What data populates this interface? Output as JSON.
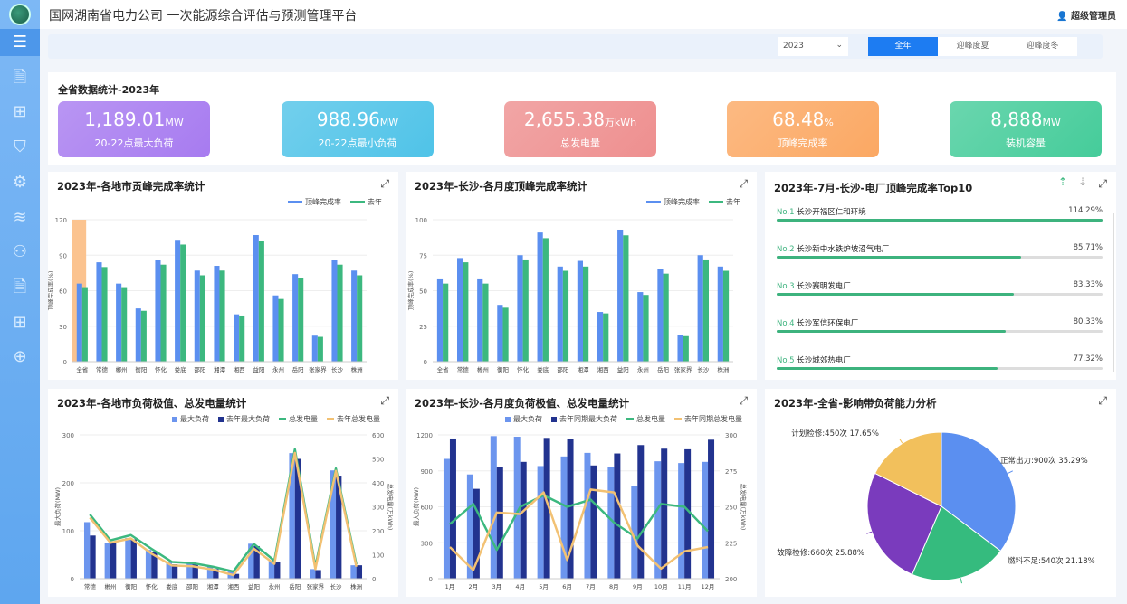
{
  "header": {
    "title": "国网湖南省电力公司 一次能源综合评估与预测管理平台",
    "user": "超级管理员"
  },
  "sidebar": {
    "items": [
      "menu-icon",
      "document-icon",
      "org-chart-icon",
      "shield-icon",
      "gear-icon",
      "layers-icon",
      "network-icon",
      "file-icon",
      "hierarchy-icon",
      "globe-icon"
    ]
  },
  "filter": {
    "year": "2023",
    "tabs": [
      "全年",
      "迎峰度夏",
      "迎峰度冬"
    ],
    "active_tab": 0
  },
  "stats": {
    "title": "全省数据统计-2023年",
    "cards": [
      {
        "value": "1,189.01",
        "unit": "MW",
        "label": "20-22点最大负荷",
        "color": "#a77bf0"
      },
      {
        "value": "988.96",
        "unit": "MW",
        "label": "20-22点最小负荷",
        "color": "#4fc3e8"
      },
      {
        "value": "2,655.38",
        "unit": "万kWh",
        "label": "总发电量",
        "color": "#ee8f8f"
      },
      {
        "value": "68.48",
        "unit": "%",
        "label": "顶峰完成率",
        "color": "#fba863"
      },
      {
        "value": "8,888",
        "unit": "MW",
        "label": "装机容量",
        "color": "#45cc9a"
      }
    ]
  },
  "chart1": {
    "title": "2023年-各地市贡峰完成率统计",
    "legend": [
      "顶峰完成率",
      "去年"
    ]
  },
  "chart2": {
    "title": "2023年-长沙-各月度顶峰完成率统计",
    "legend": [
      "顶峰完成率",
      "去年"
    ]
  },
  "chart3": {
    "title": "2023年-7月-长沙-电厂顶峰完成率Top10",
    "items": [
      {
        "no": "No.1",
        "name": "长沙开福区仁和环境",
        "pct": "114.29%",
        "value": 114.29
      },
      {
        "no": "No.2",
        "name": "长沙新中水铁炉坡沼气电厂",
        "pct": "85.71%",
        "value": 85.71
      },
      {
        "no": "No.3",
        "name": "长沙赛明发电厂",
        "pct": "83.33%",
        "value": 83.33
      },
      {
        "no": "No.4",
        "name": "长沙军信环保电厂",
        "pct": "80.33%",
        "value": 80.33
      },
      {
        "no": "No.5",
        "name": "长沙城郊热电厂",
        "pct": "77.32%",
        "value": 77.32
      }
    ]
  },
  "chart4": {
    "title": "2023年-各地市负荷极值、总发电量统计",
    "legend": [
      "最大负荷",
      "去年最大负荷",
      "总发电量",
      "去年总发电量"
    ]
  },
  "chart5": {
    "title": "2023年-长沙-各月度负荷极值、总发电量统计",
    "legend": [
      "最大负荷",
      "去年同期最大负荷",
      "总发电量",
      "去年同期总发电量"
    ]
  },
  "chart6": {
    "title": "2023年-全省-影响带负荷能力分析"
  },
  "chart_data": [
    {
      "type": "bar",
      "ylabel": "顶峰完成率(%)",
      "ylim": [
        0,
        120
      ],
      "yticks": [
        0,
        30,
        60,
        90,
        120
      ],
      "highlight": "全省",
      "categories": [
        "全省",
        "常德",
        "郴州",
        "衡阳",
        "怀化",
        "娄底",
        "邵阳",
        "湘潭",
        "湘西",
        "益阳",
        "永州",
        "岳阳",
        "张家界",
        "长沙",
        "株洲"
      ],
      "series": [
        {
          "name": "顶峰完成率",
          "color": "#5b8ff0",
          "values": [
            66,
            84,
            66,
            45,
            86,
            103,
            77,
            81,
            40,
            107,
            56,
            74,
            22,
            86,
            77
          ]
        },
        {
          "name": "去年",
          "color": "#3cb87f",
          "values": [
            63,
            80,
            63,
            43,
            82,
            99,
            73,
            77,
            39,
            102,
            53,
            71,
            21,
            82,
            73
          ]
        }
      ]
    },
    {
      "type": "bar",
      "ylabel": "顶峰完成率(%)",
      "ylim": [
        0,
        100
      ],
      "yticks": [
        0,
        25,
        50,
        75,
        100
      ],
      "categories": [
        "全省",
        "常德",
        "郴州",
        "衡阳",
        "怀化",
        "娄底",
        "邵阳",
        "湘潭",
        "湘西",
        "益阳",
        "永州",
        "岳阳",
        "张家界",
        "长沙",
        "株洲"
      ],
      "series": [
        {
          "name": "顶峰完成率",
          "color": "#5b8ff0",
          "values": [
            58,
            73,
            58,
            40,
            75,
            91,
            67,
            71,
            35,
            93,
            49,
            65,
            19,
            75,
            67
          ]
        },
        {
          "name": "去年",
          "color": "#3cb87f",
          "values": [
            55,
            70,
            55,
            38,
            72,
            87,
            64,
            67,
            34,
            89,
            47,
            62,
            18,
            72,
            64
          ]
        }
      ]
    },
    {
      "type": "bar",
      "ylabel": "最大负荷(MW)",
      "y2label": "总发电量(万kWh)",
      "ylim": [
        0,
        300
      ],
      "yticks": [
        0,
        100,
        200,
        300
      ],
      "y2lim": [
        0,
        600
      ],
      "y2ticks": [
        0,
        100,
        200,
        300,
        400,
        500,
        600
      ],
      "categories": [
        "常德",
        "郴州",
        "衡阳",
        "怀化",
        "娄底",
        "邵阳",
        "湘潭",
        "湘西",
        "益阳",
        "永州",
        "岳阳",
        "张家界",
        "长沙",
        "株洲"
      ],
      "series": [
        {
          "name": "最大负荷",
          "color": "#6c95ee",
          "values": [
            118,
            75,
            85,
            60,
            35,
            33,
            25,
            15,
            73,
            38,
            262,
            20,
            226,
            28
          ]
        },
        {
          "name": "去年最大负荷",
          "color": "#22338f",
          "values": [
            90,
            75,
            82,
            55,
            30,
            30,
            20,
            10,
            68,
            35,
            250,
            18,
            215,
            28
          ]
        }
      ],
      "lines": [
        {
          "name": "总发电量",
          "color": "#3cb87f",
          "values": [
            268,
            160,
            182,
            125,
            70,
            65,
            50,
            30,
            145,
            75,
            540,
            50,
            460,
            60
          ]
        },
        {
          "name": "去年总发电量",
          "color": "#f2c173",
          "values": [
            255,
            150,
            168,
            105,
            55,
            52,
            38,
            15,
            125,
            62,
            525,
            40,
            450,
            50
          ]
        }
      ]
    },
    {
      "type": "bar",
      "ylabel": "最大负荷(MW)",
      "y2label": "总发电量(万kWh)",
      "ylim": [
        0,
        1200
      ],
      "yticks": [
        0,
        300,
        600,
        900,
        1200
      ],
      "y2lim": [
        200,
        300
      ],
      "y2ticks": [
        200,
        225,
        250,
        275,
        300
      ],
      "categories": [
        "1月",
        "2月",
        "3月",
        "4月",
        "5月",
        "6月",
        "7月",
        "8月",
        "9月",
        "10月",
        "11月",
        "12月"
      ],
      "series": [
        {
          "name": "最大负荷",
          "color": "#6c95ee",
          "values": [
            1000,
            870,
            1190,
            1185,
            940,
            1020,
            1050,
            935,
            775,
            980,
            965,
            975
          ]
        },
        {
          "name": "去年同期最大负荷",
          "color": "#22338f",
          "values": [
            1170,
            750,
            935,
            975,
            1175,
            1165,
            945,
            1045,
            1115,
            1085,
            1080,
            1160
          ]
        }
      ],
      "lines": [
        {
          "name": "总发电量",
          "color": "#3cb87f",
          "values": [
            238,
            252,
            220,
            250,
            258,
            250,
            255,
            239,
            228,
            252,
            250,
            233
          ]
        },
        {
          "name": "去年同期总发电量",
          "color": "#f2c173",
          "values": [
            222,
            206,
            246,
            245,
            260,
            213,
            262,
            260,
            223,
            207,
            219,
            222
          ]
        }
      ]
    },
    {
      "type": "pie",
      "slices": [
        {
          "label": "正常出力:900次  35.29%",
          "value": 900,
          "color": "#5b8ff0"
        },
        {
          "label": "燃料不足:540次  21.18%",
          "value": 540,
          "color": "#35bb7e"
        },
        {
          "label": "故障检修:660次  25.88%",
          "value": 660,
          "color": "#7a3bbd"
        },
        {
          "label": "计划检修:450次  17.65%",
          "value": 450,
          "color": "#f2c05c"
        }
      ]
    }
  ]
}
